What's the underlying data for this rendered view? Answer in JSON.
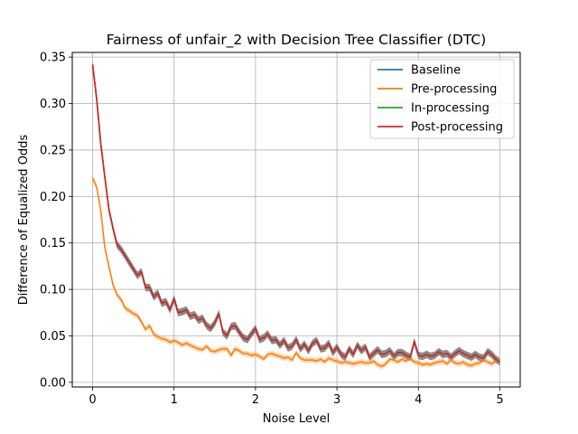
{
  "chart_data": {
    "type": "line",
    "title": "Fairness of unfair_2 with Decision Tree Classifier (DTC)",
    "xlabel": "Noise Level",
    "ylabel": "Difference of Equalized Odds",
    "xlim": [
      -0.25,
      5.25
    ],
    "ylim": [
      -0.005,
      0.355
    ],
    "xticks": [
      0,
      1,
      2,
      3,
      4,
      5
    ],
    "xtick_labels": [
      "0",
      "1",
      "2",
      "3",
      "4",
      "5"
    ],
    "yticks": [
      0.0,
      0.05,
      0.1,
      0.15,
      0.2,
      0.25,
      0.3,
      0.35
    ],
    "ytick_labels": [
      "0.00",
      "0.05",
      "0.10",
      "0.15",
      "0.20",
      "0.25",
      "0.30",
      "0.35"
    ],
    "grid": true,
    "legend_position": "top-right",
    "x": [
      0.0,
      0.05,
      0.1,
      0.15,
      0.2,
      0.25,
      0.3,
      0.35,
      0.4,
      0.45,
      0.5,
      0.55,
      0.6,
      0.65,
      0.7,
      0.75,
      0.8,
      0.85,
      0.9,
      0.95,
      1.0,
      1.05,
      1.1,
      1.15,
      1.2,
      1.25,
      1.3,
      1.35,
      1.4,
      1.45,
      1.5,
      1.55,
      1.6,
      1.65,
      1.7,
      1.75,
      1.8,
      1.85,
      1.9,
      1.95,
      2.0,
      2.05,
      2.1,
      2.15,
      2.2,
      2.25,
      2.3,
      2.35,
      2.4,
      2.45,
      2.5,
      2.55,
      2.6,
      2.65,
      2.7,
      2.75,
      2.8,
      2.85,
      2.9,
      2.95,
      3.0,
      3.05,
      3.1,
      3.15,
      3.2,
      3.25,
      3.3,
      3.35,
      3.4,
      3.45,
      3.5,
      3.55,
      3.6,
      3.65,
      3.7,
      3.75,
      3.8,
      3.85,
      3.9,
      3.95,
      4.0,
      4.05,
      4.1,
      4.15,
      4.2,
      4.25,
      4.3,
      4.35,
      4.4,
      4.45,
      4.5,
      4.55,
      4.6,
      4.65,
      4.7,
      4.75,
      4.8,
      4.85,
      4.9,
      4.95,
      5.0
    ],
    "series": [
      {
        "name": "Baseline",
        "color": "#1f77b4",
        "band_color": "#808080",
        "values": [
          0.342,
          0.305,
          0.257,
          0.221,
          0.186,
          0.166,
          0.148,
          0.143,
          0.136,
          0.129,
          0.122,
          0.115,
          0.119,
          0.102,
          0.102,
          0.092,
          0.096,
          0.085,
          0.087,
          0.078,
          0.09,
          0.075,
          0.076,
          0.078,
          0.071,
          0.073,
          0.067,
          0.069,
          0.061,
          0.058,
          0.064,
          0.074,
          0.054,
          0.05,
          0.06,
          0.061,
          0.054,
          0.048,
          0.046,
          0.052,
          0.058,
          0.046,
          0.048,
          0.052,
          0.045,
          0.046,
          0.04,
          0.045,
          0.037,
          0.039,
          0.046,
          0.036,
          0.041,
          0.034,
          0.042,
          0.045,
          0.036,
          0.037,
          0.042,
          0.032,
          0.038,
          0.03,
          0.027,
          0.036,
          0.03,
          0.04,
          0.034,
          0.038,
          0.027,
          0.031,
          0.035,
          0.03,
          0.031,
          0.034,
          0.028,
          0.032,
          0.032,
          0.029,
          0.027,
          0.044,
          0.029,
          0.028,
          0.03,
          0.028,
          0.029,
          0.033,
          0.03,
          0.031,
          0.027,
          0.031,
          0.034,
          0.031,
          0.029,
          0.027,
          0.03,
          0.027,
          0.026,
          0.033,
          0.03,
          0.025,
          0.022
        ]
      },
      {
        "name": "Pre-processing",
        "color": "#ff7f0e",
        "band_color": "#ffbb78",
        "values": [
          0.22,
          0.21,
          0.185,
          0.145,
          0.125,
          0.105,
          0.094,
          0.089,
          0.08,
          0.077,
          0.074,
          0.072,
          0.065,
          0.057,
          0.061,
          0.052,
          0.049,
          0.047,
          0.046,
          0.043,
          0.045,
          0.043,
          0.04,
          0.042,
          0.04,
          0.038,
          0.036,
          0.035,
          0.039,
          0.034,
          0.033,
          0.035,
          0.036,
          0.036,
          0.029,
          0.036,
          0.034,
          0.031,
          0.031,
          0.029,
          0.03,
          0.028,
          0.025,
          0.03,
          0.031,
          0.029,
          0.028,
          0.026,
          0.027,
          0.024,
          0.032,
          0.026,
          0.024,
          0.024,
          0.024,
          0.023,
          0.025,
          0.022,
          0.026,
          0.024,
          0.023,
          0.021,
          0.022,
          0.021,
          0.02,
          0.021,
          0.022,
          0.021,
          0.021,
          0.023,
          0.019,
          0.017,
          0.02,
          0.025,
          0.024,
          0.022,
          0.025,
          0.023,
          0.026,
          0.022,
          0.021,
          0.019,
          0.02,
          0.019,
          0.021,
          0.022,
          0.023,
          0.02,
          0.024,
          0.021,
          0.02,
          0.022,
          0.019,
          0.018,
          0.02,
          0.021,
          0.024,
          0.022,
          0.02,
          0.023,
          0.024
        ]
      },
      {
        "name": "In-processing",
        "color": "#2ca02c",
        "band_color": "#808080",
        "values": [
          0.342,
          0.305,
          0.257,
          0.221,
          0.186,
          0.166,
          0.148,
          0.143,
          0.136,
          0.129,
          0.122,
          0.115,
          0.119,
          0.102,
          0.102,
          0.092,
          0.096,
          0.085,
          0.087,
          0.078,
          0.09,
          0.075,
          0.076,
          0.078,
          0.071,
          0.073,
          0.067,
          0.069,
          0.061,
          0.058,
          0.064,
          0.074,
          0.054,
          0.05,
          0.06,
          0.061,
          0.054,
          0.048,
          0.046,
          0.052,
          0.058,
          0.046,
          0.048,
          0.052,
          0.045,
          0.046,
          0.04,
          0.045,
          0.037,
          0.039,
          0.046,
          0.036,
          0.041,
          0.034,
          0.042,
          0.045,
          0.036,
          0.037,
          0.042,
          0.032,
          0.038,
          0.03,
          0.027,
          0.036,
          0.03,
          0.04,
          0.034,
          0.038,
          0.027,
          0.031,
          0.035,
          0.03,
          0.031,
          0.034,
          0.028,
          0.032,
          0.032,
          0.029,
          0.027,
          0.044,
          0.029,
          0.028,
          0.03,
          0.028,
          0.029,
          0.033,
          0.03,
          0.031,
          0.027,
          0.031,
          0.034,
          0.031,
          0.029,
          0.027,
          0.03,
          0.027,
          0.026,
          0.033,
          0.03,
          0.025,
          0.022
        ]
      },
      {
        "name": "Post-processing",
        "color": "#d62728",
        "band_color": "#808080",
        "values": [
          0.342,
          0.305,
          0.257,
          0.221,
          0.186,
          0.166,
          0.148,
          0.143,
          0.136,
          0.129,
          0.122,
          0.115,
          0.119,
          0.102,
          0.102,
          0.092,
          0.096,
          0.085,
          0.087,
          0.078,
          0.09,
          0.075,
          0.076,
          0.078,
          0.071,
          0.073,
          0.067,
          0.069,
          0.061,
          0.058,
          0.064,
          0.074,
          0.054,
          0.05,
          0.06,
          0.061,
          0.054,
          0.048,
          0.046,
          0.052,
          0.058,
          0.046,
          0.048,
          0.052,
          0.045,
          0.046,
          0.04,
          0.045,
          0.037,
          0.039,
          0.046,
          0.036,
          0.041,
          0.034,
          0.042,
          0.045,
          0.036,
          0.037,
          0.042,
          0.032,
          0.038,
          0.03,
          0.027,
          0.036,
          0.03,
          0.04,
          0.034,
          0.038,
          0.027,
          0.031,
          0.035,
          0.03,
          0.031,
          0.034,
          0.028,
          0.032,
          0.032,
          0.029,
          0.027,
          0.044,
          0.029,
          0.028,
          0.03,
          0.028,
          0.029,
          0.033,
          0.03,
          0.031,
          0.027,
          0.031,
          0.034,
          0.031,
          0.029,
          0.027,
          0.03,
          0.027,
          0.026,
          0.033,
          0.03,
          0.025,
          0.022
        ]
      }
    ],
    "band_halfwidth": [
      0.004,
      0.003,
      0.004,
      0.004
    ]
  }
}
